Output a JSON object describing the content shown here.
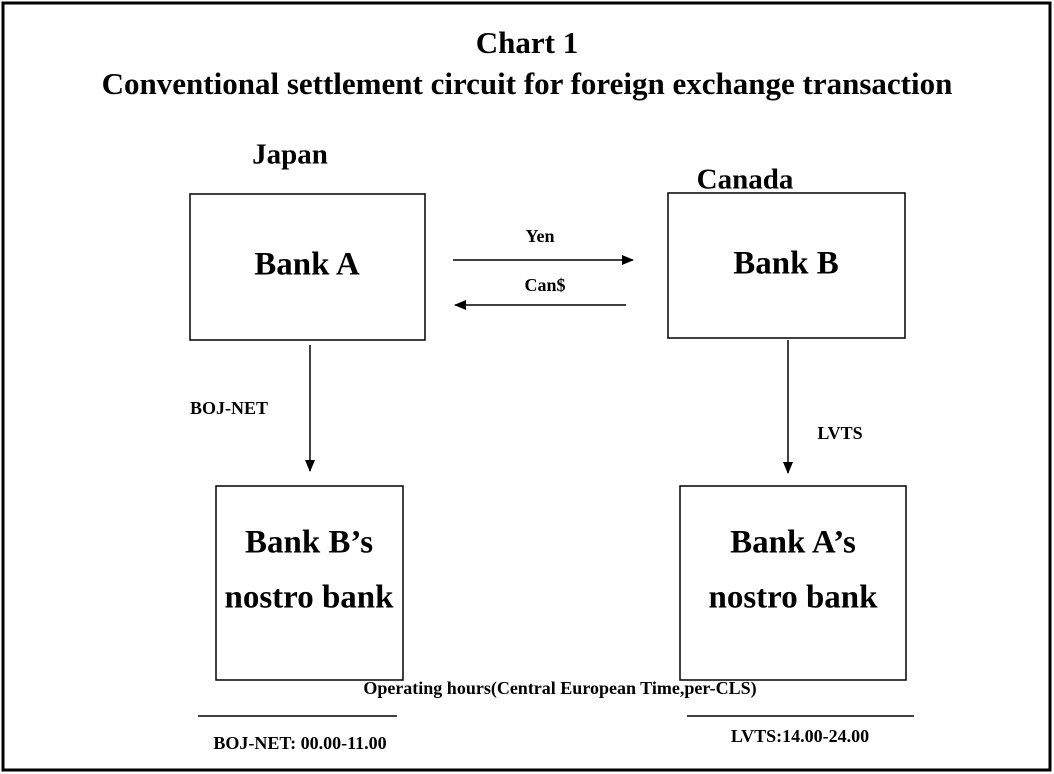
{
  "header": {
    "title": "Chart 1",
    "subtitle": "Conventional settlement circuit for foreign exchange transaction"
  },
  "regions": [
    "Japan",
    "Canada"
  ],
  "nodes": [
    {
      "label": [
        "Bank A"
      ]
    },
    {
      "label": [
        "Bank B"
      ]
    },
    {
      "label": [
        "Bank B’s",
        "nostro bank"
      ]
    },
    {
      "label": [
        "Bank A’s",
        "nostro bank"
      ]
    }
  ],
  "edges": [
    {
      "label": "Yen"
    },
    {
      "label": "Can$"
    },
    {
      "label": "BOJ-NET"
    },
    {
      "label": "LVTS"
    }
  ],
  "footer": {
    "title": "Operating hours(Central European Time,per-CLS)",
    "hours": [
      "BOJ-NET: 00.00-11.00",
      "LVTS:14.00-24.00"
    ]
  }
}
